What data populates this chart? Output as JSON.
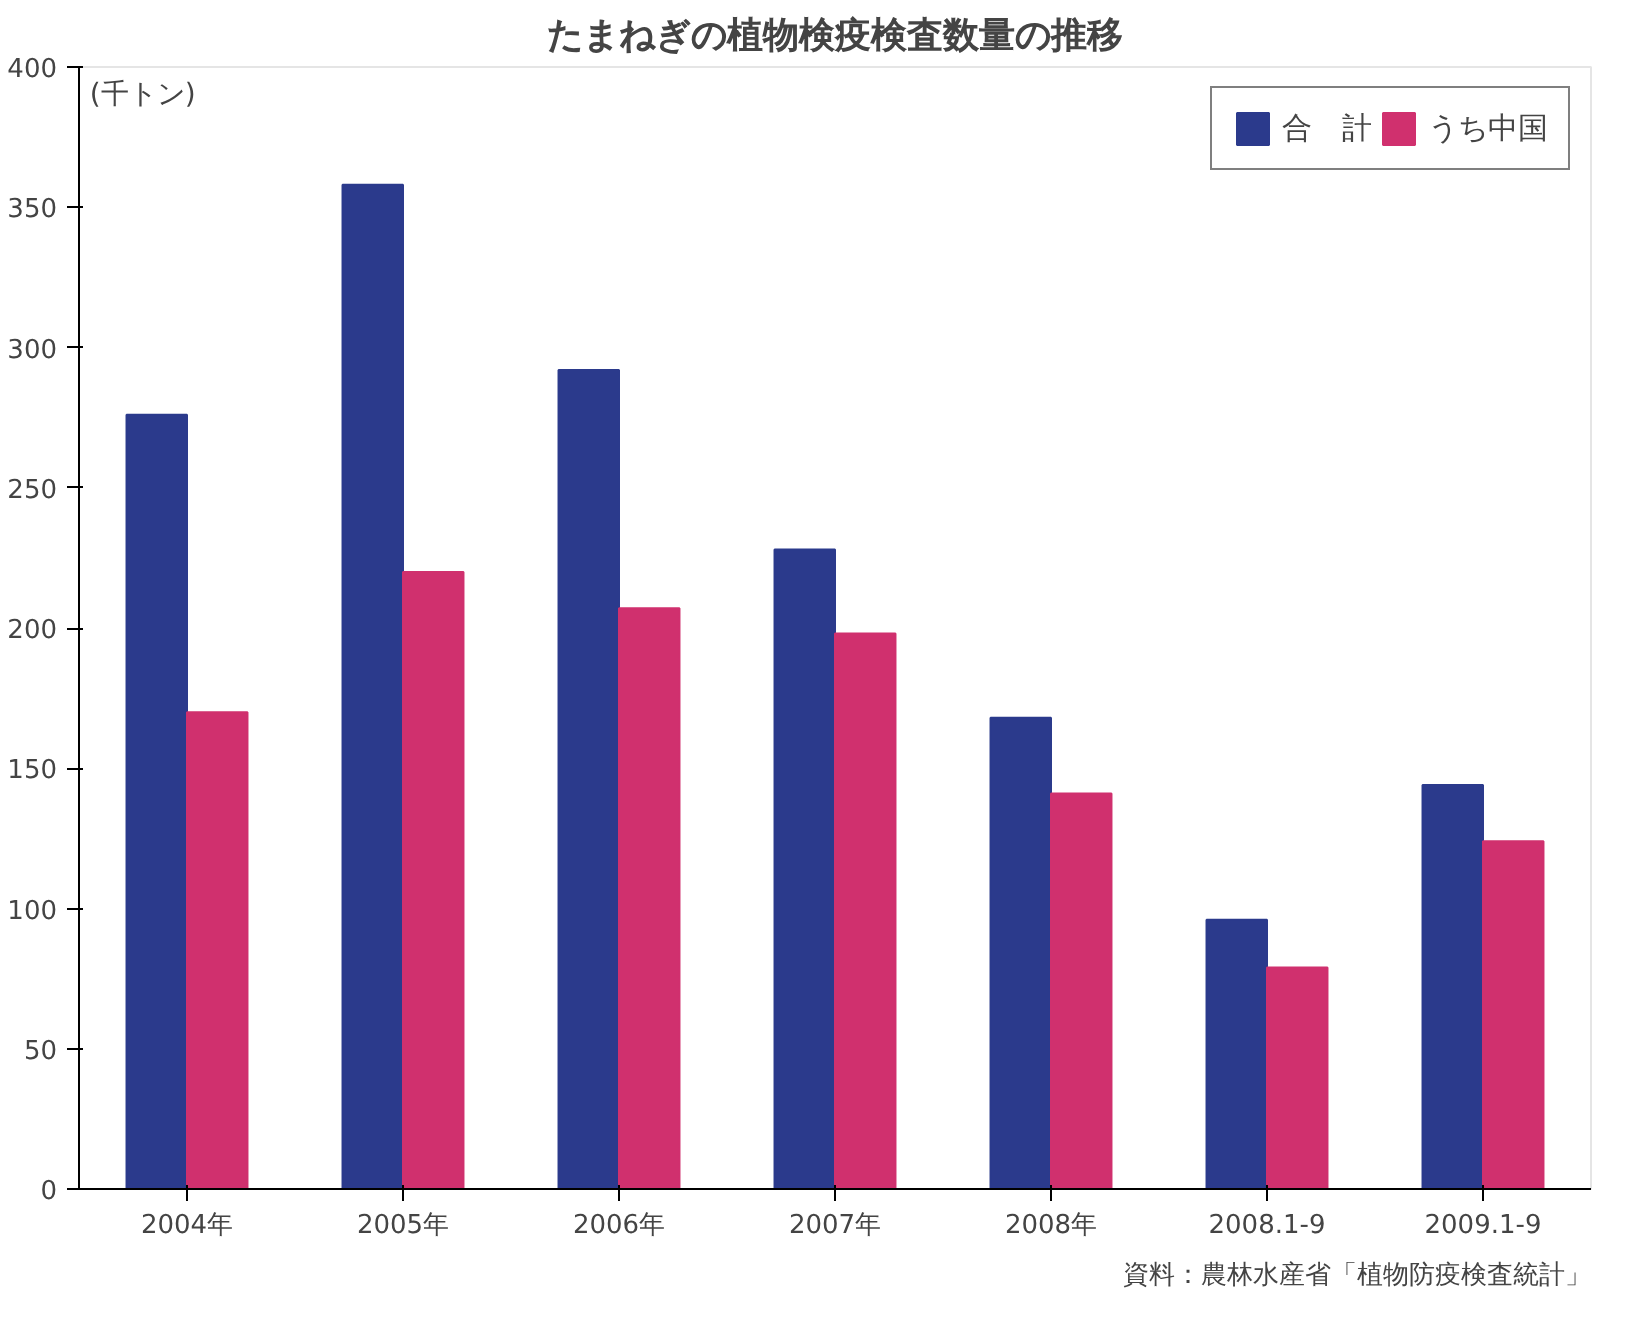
{
  "chart_data": {
    "type": "bar",
    "title": "たまねぎの植物検疫検査数量の推移",
    "ylabel": "(千トン)",
    "categories": [
      "2004年",
      "2005年",
      "2006年",
      "2007年",
      "2008年",
      "2008.1-9",
      "2009.1-9"
    ],
    "series": [
      {
        "name": "合　計",
        "color": "#2b3a8c",
        "values": [
          276,
          358,
          292,
          228,
          168,
          96,
          144
        ]
      },
      {
        "name": "うち中国",
        "color": "#d0306e",
        "values": [
          170,
          220,
          207,
          198,
          141,
          79,
          124
        ]
      }
    ],
    "ylim": [
      0,
      400
    ],
    "yticks": [
      0,
      50,
      100,
      150,
      200,
      250,
      300,
      350,
      400
    ],
    "grid": false,
    "legend": "top right",
    "annotations": [
      "資料：農林水産省「植物防疫検査統計」"
    ]
  }
}
